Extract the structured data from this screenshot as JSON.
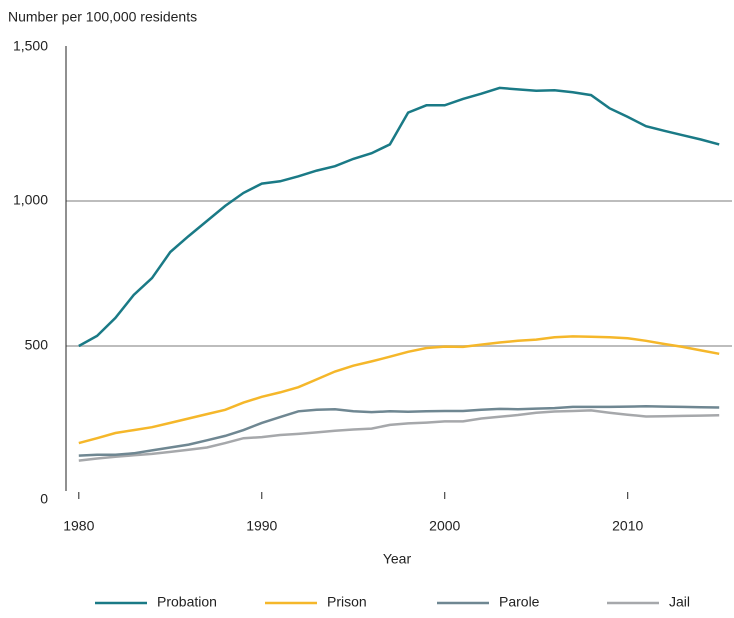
{
  "chart_data": {
    "type": "line",
    "y_label": "Number per 100,000 residents",
    "x_label": "Year",
    "x": [
      1980,
      1981,
      1982,
      1983,
      1984,
      1985,
      1986,
      1987,
      1988,
      1989,
      1990,
      1991,
      1992,
      1993,
      1994,
      1995,
      1996,
      1997,
      1998,
      1999,
      2000,
      2001,
      2002,
      2003,
      2004,
      2005,
      2006,
      2007,
      2008,
      2009,
      2010,
      2011,
      2012,
      2013,
      2014,
      2015
    ],
    "series": [
      {
        "name": "Probation",
        "color": "#1a7a86",
        "values": [
          500,
          535,
          597,
          676,
          734,
          824,
          879,
          931,
          983,
          1028,
          1060,
          1068,
          1085,
          1105,
          1120,
          1145,
          1165,
          1195,
          1305,
          1330,
          1330,
          1352,
          1370,
          1390,
          1385,
          1380,
          1382,
          1375,
          1365,
          1320,
          1290,
          1258,
          1242,
          1227,
          1212,
          1195
        ]
      },
      {
        "name": "Prison",
        "color": "#f5b72a",
        "values": [
          165,
          182,
          200,
          210,
          220,
          235,
          250,
          265,
          280,
          305,
          325,
          340,
          358,
          385,
          412,
          432,
          447,
          463,
          480,
          493,
          498,
          497,
          505,
          512,
          518,
          522,
          530,
          533,
          532,
          530,
          527,
          518,
          507,
          497,
          485,
          473
        ]
      },
      {
        "name": "Parole",
        "color": "#6f8792",
        "values": [
          122,
          125,
          125,
          130,
          140,
          150,
          160,
          175,
          190,
          210,
          235,
          255,
          275,
          280,
          282,
          275,
          272,
          275,
          273,
          275,
          276,
          276,
          280,
          283,
          282,
          284,
          286,
          290,
          290,
          290,
          291,
          292,
          291,
          290,
          289,
          288
        ]
      },
      {
        "name": "Jail",
        "color": "#a6a8ab",
        "values": [
          105,
          112,
          118,
          123,
          128,
          135,
          142,
          150,
          165,
          182,
          186,
          193,
          197,
          202,
          208,
          212,
          215,
          228,
          233,
          236,
          240,
          240,
          250,
          256,
          262,
          270,
          274,
          276,
          278,
          270,
          263,
          257,
          258,
          259,
          260,
          261
        ]
      }
    ],
    "xlim": [
      1979.3,
      2015.7
    ],
    "xticks": [
      1980,
      1990,
      2000,
      2010
    ],
    "ylim": [
      0,
      1500
    ],
    "yticks": [
      0,
      500,
      {
        "value": 1000,
        "label": "1,000"
      },
      {
        "value": 1500,
        "label": "1,500"
      }
    ],
    "grid": true,
    "legend": "bottom"
  }
}
